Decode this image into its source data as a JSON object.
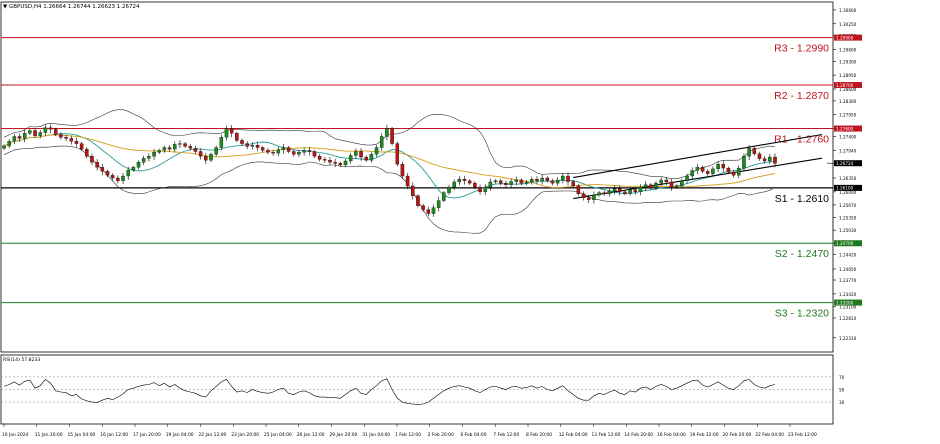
{
  "header": {
    "symbol_line": "GBPUSD,H4  1.26664 1.26744 1.26623 1.26724"
  },
  "colors": {
    "resistance": "#c0141e",
    "support_main": "#000000",
    "support_lower": "#1f7a1f",
    "bull_candle": "#1f8a1f",
    "bear_candle": "#b81616",
    "channel": "#000000",
    "bollinger": "#333333",
    "ma_fast": "#2a9a9a",
    "ma_slow": "#d4a017",
    "price_tag_bg": "#c0141e",
    "current_tag_bg": "#000000",
    "rsi_line": "#000000"
  },
  "chart_data": [
    {
      "type": "candlestick",
      "symbol": "GBPUSD",
      "timeframe": "H4",
      "ylim": [
        1.2195,
        1.308
      ],
      "y_ticks": [
        "1.30600",
        "1.30250",
        "1.29950",
        "1.29600",
        "1.29300",
        "1.28950",
        "1.28600",
        "1.28300",
        "1.27950",
        "1.27600",
        "1.27400",
        "1.27040",
        "1.26724",
        "1.26350",
        "1.26000",
        "1.25670",
        "1.25350",
        "1.25030",
        "1.24700",
        "1.24420",
        "1.24050",
        "1.23770",
        "1.23420",
        "1.23100",
        "1.22810",
        "1.22310"
      ],
      "x_labels": [
        "10 Jan 2024",
        "11 Jan 20:00",
        "15 Jan 04:00",
        "16 Jan 12:00",
        "17 Jan 20:00",
        "19 Jan 04:00",
        "22 Jan 12:00",
        "23 Jan 20:00",
        "25 Jan 04:00",
        "26 Jan 12:00",
        "29 Jan 20:00",
        "31 Jan 04:00",
        "1 Feb 12:00",
        "2 Feb 20:00",
        "6 Feb 04:00",
        "7 Feb 12:00",
        "8 Feb 20:00",
        "12 Feb 04:00",
        "13 Feb 12:00",
        "14 Feb 20:00",
        "16 Feb 04:00",
        "19 Feb 12:00",
        "20 Feb 20:00",
        "22 Feb 04:00",
        "23 Feb 12:00"
      ],
      "levels": [
        {
          "label": "R3 - 1.2990",
          "value": 1.299,
          "tag": "1.29900",
          "kind": "resistance"
        },
        {
          "label": "R2 - 1.2870",
          "value": 1.287,
          "tag": "1.28700",
          "kind": "resistance"
        },
        {
          "label": "R1 - 1.2760",
          "value": 1.276,
          "tag": "1.27600",
          "kind": "resistance"
        },
        {
          "label": "S1 - 1.2610",
          "value": 1.261,
          "tag": "1.26100",
          "kind": "support_main"
        },
        {
          "label": "S2 - 1.2470",
          "value": 1.247,
          "tag": "1.24700",
          "kind": "support_lower"
        },
        {
          "label": "S3 - 1.2320",
          "value": 1.232,
          "tag": "1.23200",
          "kind": "support_lower"
        }
      ],
      "current_price": {
        "value": 1.26724,
        "tag": "1.26724"
      },
      "closes": [
        1.2716,
        1.2728,
        1.274,
        1.2735,
        1.2748,
        1.2755,
        1.2742,
        1.275,
        1.2762,
        1.2758,
        1.2745,
        1.2738,
        1.2735,
        1.2728,
        1.2722,
        1.2708,
        1.269,
        1.2675,
        1.2662,
        1.2652,
        1.2642,
        1.2635,
        1.2628,
        1.264,
        1.2655,
        1.2662,
        1.2675,
        1.2685,
        1.269,
        1.27,
        1.2705,
        1.2712,
        1.2708,
        1.272,
        1.2722,
        1.2715,
        1.271,
        1.2702,
        1.269,
        1.268,
        1.2695,
        1.2712,
        1.2738,
        1.276,
        1.2748,
        1.273,
        1.2722,
        1.2715,
        1.2718,
        1.2712,
        1.2705,
        1.27,
        1.2698,
        1.2706,
        1.2712,
        1.2702,
        1.2695,
        1.27,
        1.2705,
        1.2702,
        1.269,
        1.2682,
        1.268,
        1.2675,
        1.2672,
        1.2668,
        1.2678,
        1.2692,
        1.2702,
        1.2688,
        1.268,
        1.2695,
        1.2712,
        1.274,
        1.276,
        1.2722,
        1.267,
        1.264,
        1.2615,
        1.259,
        1.2565,
        1.2555,
        1.2545,
        1.256,
        1.2578,
        1.2598,
        1.2612,
        1.2625,
        1.2632,
        1.2628,
        1.2622,
        1.2612,
        1.26,
        1.2612,
        1.2625,
        1.2628,
        1.2622,
        1.2618,
        1.2626,
        1.263,
        1.2622,
        1.2625,
        1.2632,
        1.2628,
        1.2635,
        1.2628,
        1.2622,
        1.263,
        1.264,
        1.2626,
        1.2615,
        1.2595,
        1.2585,
        1.258,
        1.2592,
        1.2598,
        1.2595,
        1.2602,
        1.2608,
        1.26,
        1.2596,
        1.2605,
        1.26,
        1.2612,
        1.2618,
        1.261,
        1.2622,
        1.263,
        1.2625,
        1.2612,
        1.2615,
        1.2628,
        1.264,
        1.2654,
        1.2662,
        1.2652,
        1.2646,
        1.2658,
        1.267,
        1.266,
        1.265,
        1.2642,
        1.266,
        1.269,
        1.271,
        1.2696,
        1.2684,
        1.2678,
        1.2688,
        1.2672
      ],
      "rsi": {
        "label": "RSI(14) 57.8233",
        "ylim": [
          0,
          100
        ],
        "ticks": [
          "70",
          "50",
          "30"
        ],
        "levels": [
          70,
          50,
          30
        ],
        "values": [
          55,
          58,
          62,
          57,
          63,
          65,
          52,
          56,
          66,
          60,
          48,
          46,
          45,
          40,
          42,
          35,
          32,
          30,
          29,
          33,
          36,
          34,
          38,
          43,
          50,
          52,
          55,
          57,
          58,
          61,
          56,
          60,
          54,
          58,
          52,
          48,
          46,
          44,
          40,
          38,
          48,
          55,
          62,
          66,
          55,
          46,
          48,
          45,
          50,
          47,
          45,
          44,
          46,
          50,
          52,
          44,
          42,
          46,
          48,
          45,
          40,
          38,
          38,
          37,
          37,
          36,
          42,
          48,
          52,
          44,
          42,
          50,
          56,
          64,
          67,
          50,
          36,
          30,
          28,
          27,
          26,
          27,
          30,
          36,
          42,
          48,
          52,
          55,
          56,
          54,
          52,
          48,
          45,
          50,
          54,
          55,
          52,
          50,
          54,
          55,
          52,
          53,
          56,
          52,
          55,
          50,
          48,
          52,
          56,
          48,
          42,
          36,
          33,
          33,
          40,
          44,
          42,
          46,
          49,
          44,
          42,
          48,
          46,
          52,
          54,
          50,
          55,
          58,
          55,
          50,
          52,
          56,
          60,
          64,
          65,
          57,
          54,
          58,
          62,
          57,
          52,
          50,
          56,
          64,
          66,
          58,
          54,
          52,
          56,
          58
        ]
      }
    }
  ]
}
